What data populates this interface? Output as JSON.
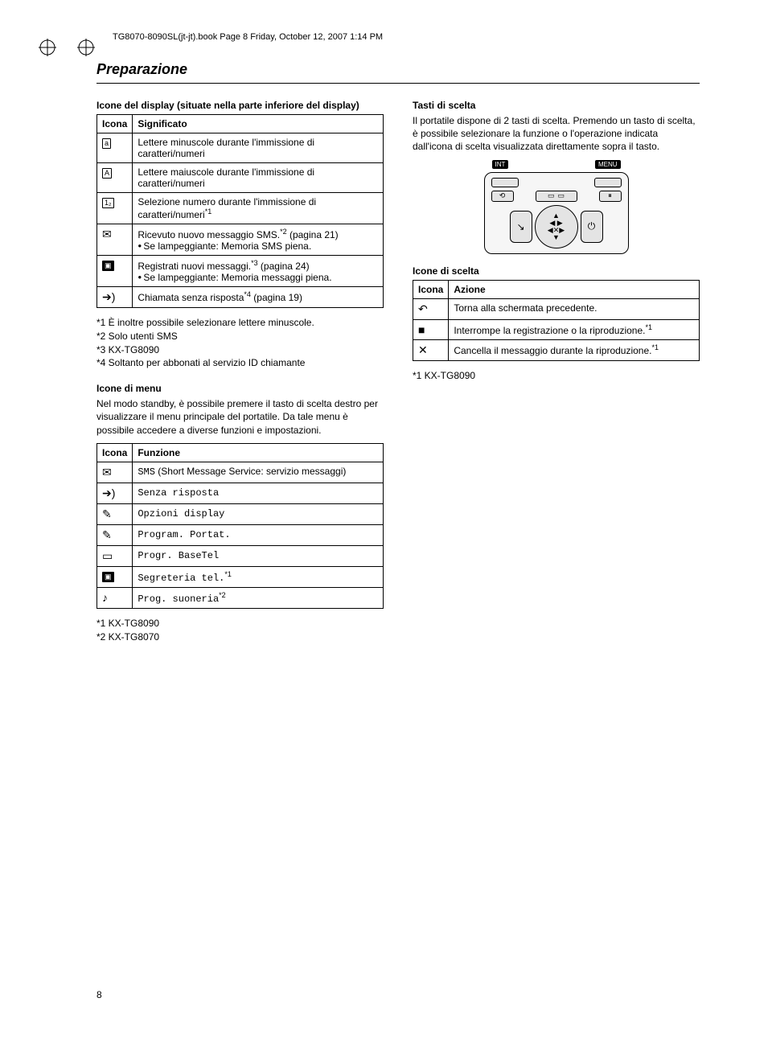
{
  "meta": {
    "header": "TG8070-8090SL(jt-jt).book  Page 8  Friday, October 12, 2007  1:14 PM"
  },
  "section_title": "Preparazione",
  "left": {
    "display_icons": {
      "title": "Icone del display (situate nella parte inferiore del display)",
      "col_icon": "Icona",
      "col_meaning": "Significato",
      "rows": [
        {
          "glyph": "a",
          "style": "box",
          "text": "Lettere minuscole durante l'immissione di caratteri/numeri"
        },
        {
          "glyph": "A",
          "style": "box",
          "text": "Lettere maiuscole durante l'immissione di caratteri/numeri"
        },
        {
          "glyph": "1₂",
          "style": "box",
          "text": "Selezione numero durante l'immissione di caratteri/numeri",
          "sup": "*1"
        },
        {
          "glyph": "✉",
          "style": "plain",
          "html": "Ricevuto nuovo messaggio SMS.<span class='sup'>*2</span> (pagina 21)<ul class='bullets'><li>Se lampeggiante: Memoria SMS piena.</li></ul>"
        },
        {
          "glyph": "▣",
          "style": "filled",
          "html": "Registrati nuovi messaggi.<span class='sup'>*3</span> (pagina 24)<ul class='bullets'><li>Se lampeggiante: Memoria messaggi piena.</li></ul>"
        },
        {
          "glyph": "➔)",
          "style": "plain",
          "html": "Chiamata senza risposta<span class='sup'>*4</span> (pagina 19)"
        }
      ],
      "footnotes": [
        "*1 È inoltre possibile selezionare lettere minuscole.",
        "*2 Solo utenti SMS",
        "*3 KX-TG8090",
        "*4 Soltanto per abbonati al servizio ID chiamante"
      ]
    },
    "menu_icons": {
      "title": "Icone di menu",
      "intro": "Nel modo standby, è possibile premere il tasto di scelta destro per visualizzare il menu principale del portatile. Da tale menu è possibile accedere a diverse funzioni e impostazioni.",
      "col_icon": "Icona",
      "col_func": "Funzione",
      "rows": [
        {
          "glyph": "✉",
          "html": "<span class='mono'>SMS</span> (Short Message Service: servizio messaggi)"
        },
        {
          "glyph": "➔)",
          "html": "<span class='mono'>Senza risposta</span>"
        },
        {
          "glyph": "✎",
          "html": "<span class='mono'>Opzioni display</span>"
        },
        {
          "glyph": "✎",
          "html": "<span class='mono'>Program. Portat.</span>"
        },
        {
          "glyph": "▭",
          "html": "<span class='mono'>Progr. BaseTel</span>"
        },
        {
          "glyph": "▣",
          "html": "<span class='mono'>Segreteria tel.</span><span class='sup'>*1</span>",
          "filled": true
        },
        {
          "glyph": "♪",
          "html": "<span class='mono'>Prog. suoneria</span><span class='sup'>*2</span>"
        }
      ],
      "footnotes": [
        "*1 KX-TG8090",
        "*2 KX-TG8070"
      ]
    }
  },
  "right": {
    "softkeys": {
      "title": "Tasti di scelta",
      "para": "Il portatile dispone di 2 tasti di scelta. Premendo un tasto di scelta, è possibile selezionare la funzione o l'operazione indicata dall'icona di scelta visualizzata direttamente sopra il tasto.",
      "label_left": "INT",
      "label_right": "MENU"
    },
    "select_icons": {
      "title": "Icone di scelta",
      "col_icon": "Icona",
      "col_action": "Azione",
      "rows": [
        {
          "glyph": "↶",
          "text": "Torna alla schermata precedente."
        },
        {
          "glyph": "■",
          "html": "Interrompe la registrazione o la riproduzione.<span class='sup'>*1</span>"
        },
        {
          "glyph": "✕",
          "html": "Cancella il messaggio durante la riproduzione.<span class='sup'>*1</span>"
        }
      ],
      "footnote": "*1 KX-TG8090"
    }
  },
  "page_number": "8"
}
